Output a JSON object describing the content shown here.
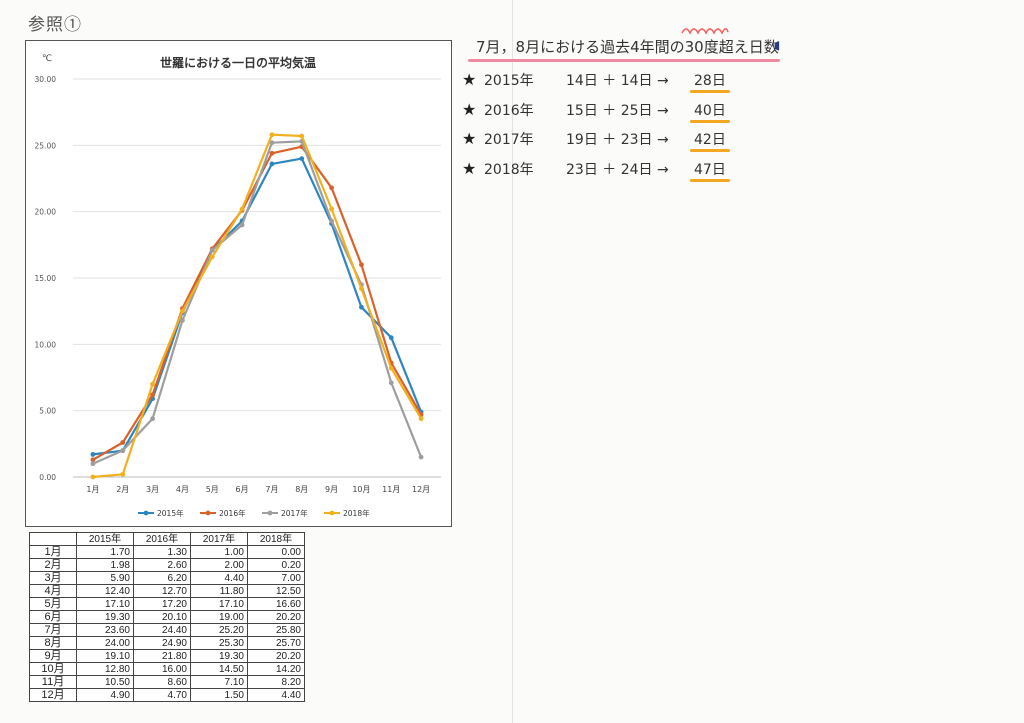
{
  "reference_label": "参照①",
  "chart_data": {
    "type": "line",
    "title": "世羅における一日の平均気温",
    "ylabel": "℃",
    "xlabel": "",
    "categories": [
      "1月",
      "2月",
      "3月",
      "4月",
      "5月",
      "6月",
      "7月",
      "8月",
      "9月",
      "10月",
      "11月",
      "12月"
    ],
    "ylim": [
      0,
      30
    ],
    "yticks": [
      "0.00",
      "5.00",
      "10.00",
      "15.00",
      "20.00",
      "25.00",
      "30.00"
    ],
    "grid": true,
    "legend": "bottom",
    "series": [
      {
        "name": "2015年",
        "color": "#2e86c1",
        "values": [
          1.7,
          1.98,
          5.9,
          12.4,
          17.1,
          19.3,
          23.6,
          24.0,
          19.1,
          12.8,
          10.5,
          4.9
        ]
      },
      {
        "name": "2016年",
        "color": "#d9622b",
        "values": [
          1.3,
          2.6,
          6.2,
          12.7,
          17.2,
          20.1,
          24.4,
          24.9,
          21.8,
          16.0,
          8.6,
          4.7
        ]
      },
      {
        "name": "2017年",
        "color": "#9e9e9e",
        "values": [
          1.0,
          2.0,
          4.4,
          11.8,
          17.1,
          19.0,
          25.2,
          25.3,
          19.3,
          14.5,
          7.1,
          1.5
        ]
      },
      {
        "name": "2018年",
        "color": "#f2b01e",
        "values": [
          0.0,
          0.2,
          7.0,
          12.5,
          16.6,
          20.2,
          25.8,
          25.7,
          20.2,
          14.2,
          8.2,
          4.4
        ]
      }
    ]
  },
  "table": {
    "headers": [
      "2015年",
      "2016年",
      "2017年",
      "2018年"
    ],
    "rows": [
      {
        "label": "1月",
        "values": [
          "1.70",
          "1.30",
          "1.00",
          "0.00"
        ]
      },
      {
        "label": "2月",
        "values": [
          "1.98",
          "2.60",
          "2.00",
          "0.20"
        ]
      },
      {
        "label": "3月",
        "values": [
          "5.90",
          "6.20",
          "4.40",
          "7.00"
        ]
      },
      {
        "label": "4月",
        "values": [
          "12.40",
          "12.70",
          "11.80",
          "12.50"
        ]
      },
      {
        "label": "5月",
        "values": [
          "17.10",
          "17.20",
          "17.10",
          "16.60"
        ]
      },
      {
        "label": "6月",
        "values": [
          "19.30",
          "20.10",
          "19.00",
          "20.20"
        ]
      },
      {
        "label": "7月",
        "values": [
          "23.60",
          "24.40",
          "25.20",
          "25.80"
        ]
      },
      {
        "label": "8月",
        "values": [
          "24.00",
          "24.90",
          "25.30",
          "25.70"
        ]
      },
      {
        "label": "9月",
        "values": [
          "19.10",
          "21.80",
          "19.30",
          "20.20"
        ]
      },
      {
        "label": "10月",
        "values": [
          "12.80",
          "16.00",
          "14.50",
          "14.20"
        ]
      },
      {
        "label": "11月",
        "values": [
          "10.50",
          "8.60",
          "7.10",
          "8.20"
        ]
      },
      {
        "label": "12月",
        "values": [
          "4.90",
          "4.70",
          "1.50",
          "4.40"
        ]
      }
    ]
  },
  "notes": {
    "title": "7月，8月における過去4年間の30度超え日数",
    "accent": "#f08aa0",
    "highlight": "#f5a623",
    "rows": [
      {
        "year": "2015年",
        "expr": "14日 ＋ 14日 →",
        "result": "28日"
      },
      {
        "year": "2016年",
        "expr": "15日 ＋ 25日 →",
        "result": "40日"
      },
      {
        "year": "2017年",
        "expr": "19日 ＋ 23日 →",
        "result": "42日"
      },
      {
        "year": "2018年",
        "expr": "23日 ＋ 24日 →",
        "result": "47日"
      }
    ]
  }
}
